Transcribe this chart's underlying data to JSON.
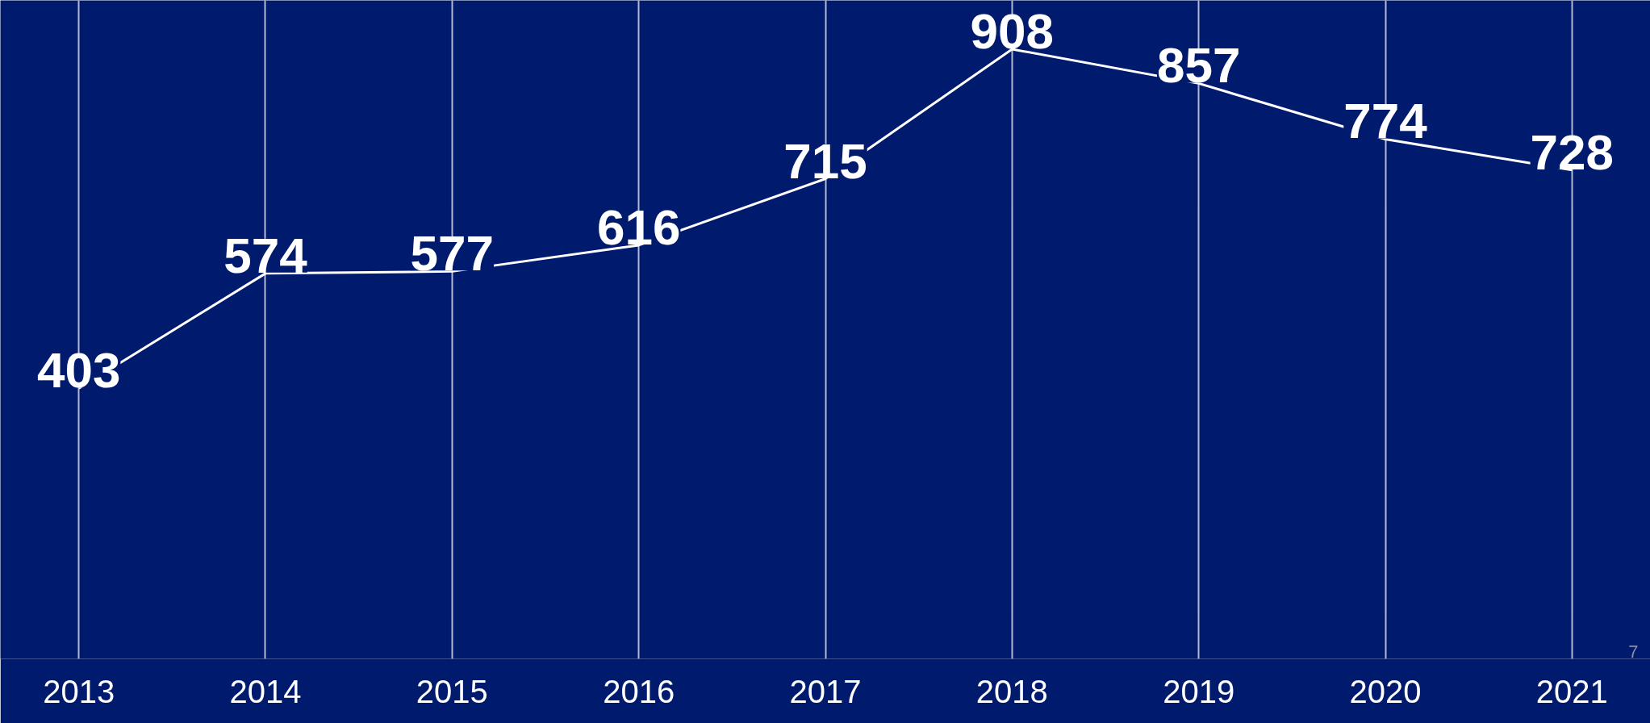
{
  "chart_data": {
    "type": "line",
    "categories": [
      "2013",
      "2014",
      "2015",
      "2016",
      "2017",
      "2018",
      "2019",
      "2020",
      "2021"
    ],
    "series": [
      {
        "color": "#ffffff",
        "values": [
          403,
          574,
          577,
          616,
          715,
          908,
          857,
          774,
          728
        ]
      }
    ],
    "data_labels": true,
    "grid": "x",
    "line_style": "solid",
    "tick_labels": "x",
    "annotations": [
      "7"
    ]
  }
}
